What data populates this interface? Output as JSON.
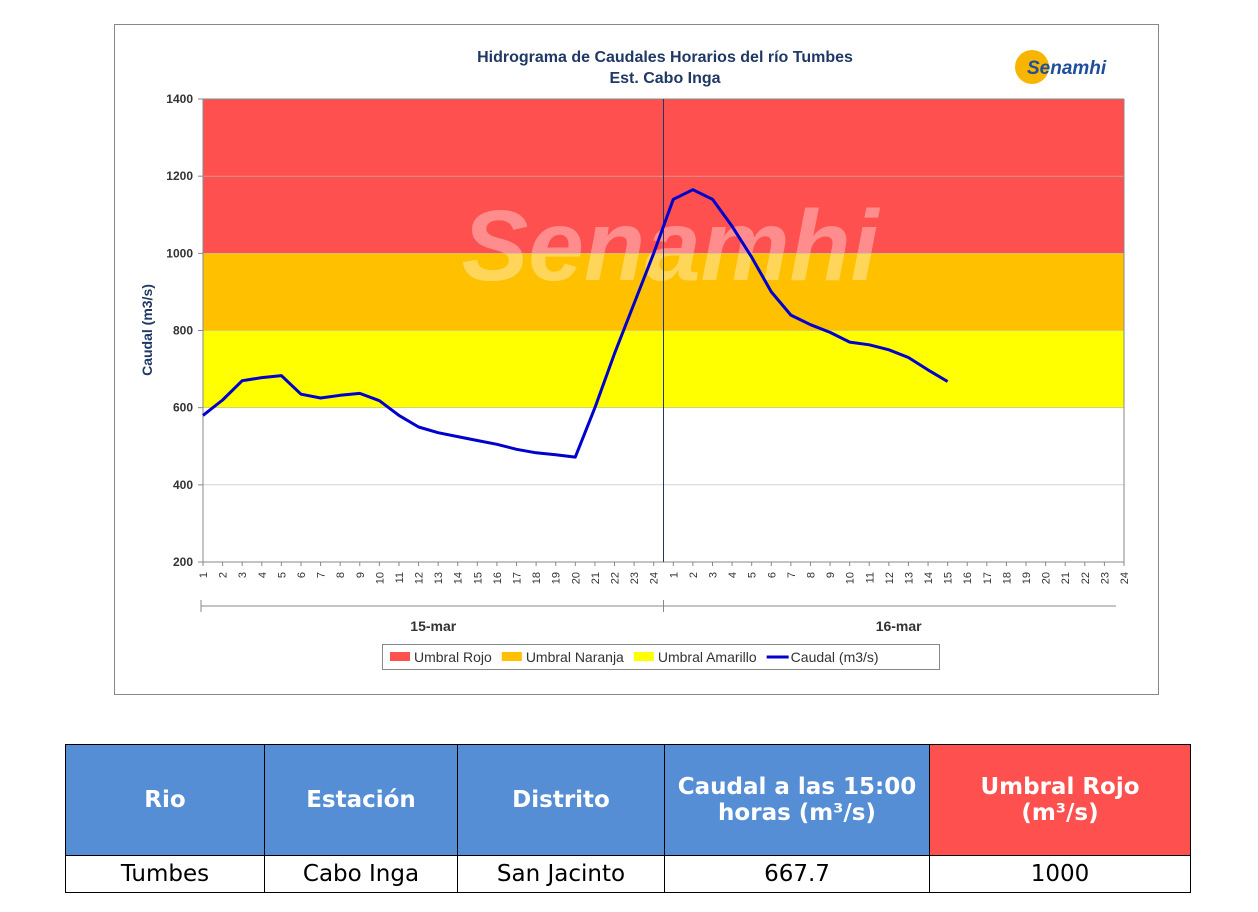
{
  "chart_data": {
    "type": "line",
    "title": "Hidrograma de Caudales Horarios del río Tumbes",
    "subtitle": "Est. Cabo Inga",
    "logo": "Senamhi",
    "watermark": "Senamhi",
    "y_label": "Caudal  (m3/s)",
    "categories": [
      "1",
      "2",
      "3",
      "4",
      "5",
      "6",
      "7",
      "8",
      "9",
      "10",
      "11",
      "12",
      "13",
      "14",
      "15",
      "16",
      "17",
      "18",
      "19",
      "20",
      "21",
      "22",
      "23",
      "24",
      "1",
      "2",
      "3",
      "4",
      "5",
      "6",
      "7",
      "8",
      "9",
      "10",
      "11",
      "12",
      "13",
      "14",
      "15",
      "16",
      "17",
      "18",
      "19",
      "20",
      "21",
      "22",
      "23",
      "24"
    ],
    "groups": [
      {
        "label": "15-mar",
        "size": 24
      },
      {
        "label": "16-mar",
        "size": 24
      }
    ],
    "bands": [
      {
        "name": "Umbral Rojo",
        "color": "#ff5050",
        "from": 1000,
        "to": 1400
      },
      {
        "name": "Umbral Naranja",
        "color": "#ffc000",
        "from": 800,
        "to": 1000
      },
      {
        "name": "Umbral Amarillo",
        "color": "#ffff00",
        "from": 600,
        "to": 800
      }
    ],
    "series": [
      {
        "name": "Caudal (m3/s)",
        "color": "#0000cc",
        "values": [
          580,
          620,
          670,
          678,
          683,
          635,
          625,
          632,
          637,
          618,
          580,
          550,
          535,
          525,
          515,
          505,
          492,
          483,
          478,
          472,
          600,
          740,
          870,
          1000,
          1140,
          1165,
          1140,
          1070,
          990,
          900,
          840,
          815,
          795,
          770,
          763,
          750,
          730,
          698,
          667.7,
          null,
          null,
          null,
          null,
          null,
          null,
          null,
          null,
          null
        ]
      }
    ],
    "ylim": [
      200,
      1400
    ],
    "yticks": [
      200,
      400,
      600,
      800,
      1000,
      1200,
      1400
    ]
  },
  "table": {
    "header": [
      "Rio",
      "Estación",
      "Distrito",
      "Caudal a las 15:00 horas (m³/s)",
      "Umbral Rojo (m³/s)"
    ],
    "rows": [
      [
        "Tumbes",
        "Cabo Inga",
        "San Jacinto",
        667.7,
        1000
      ]
    ]
  }
}
